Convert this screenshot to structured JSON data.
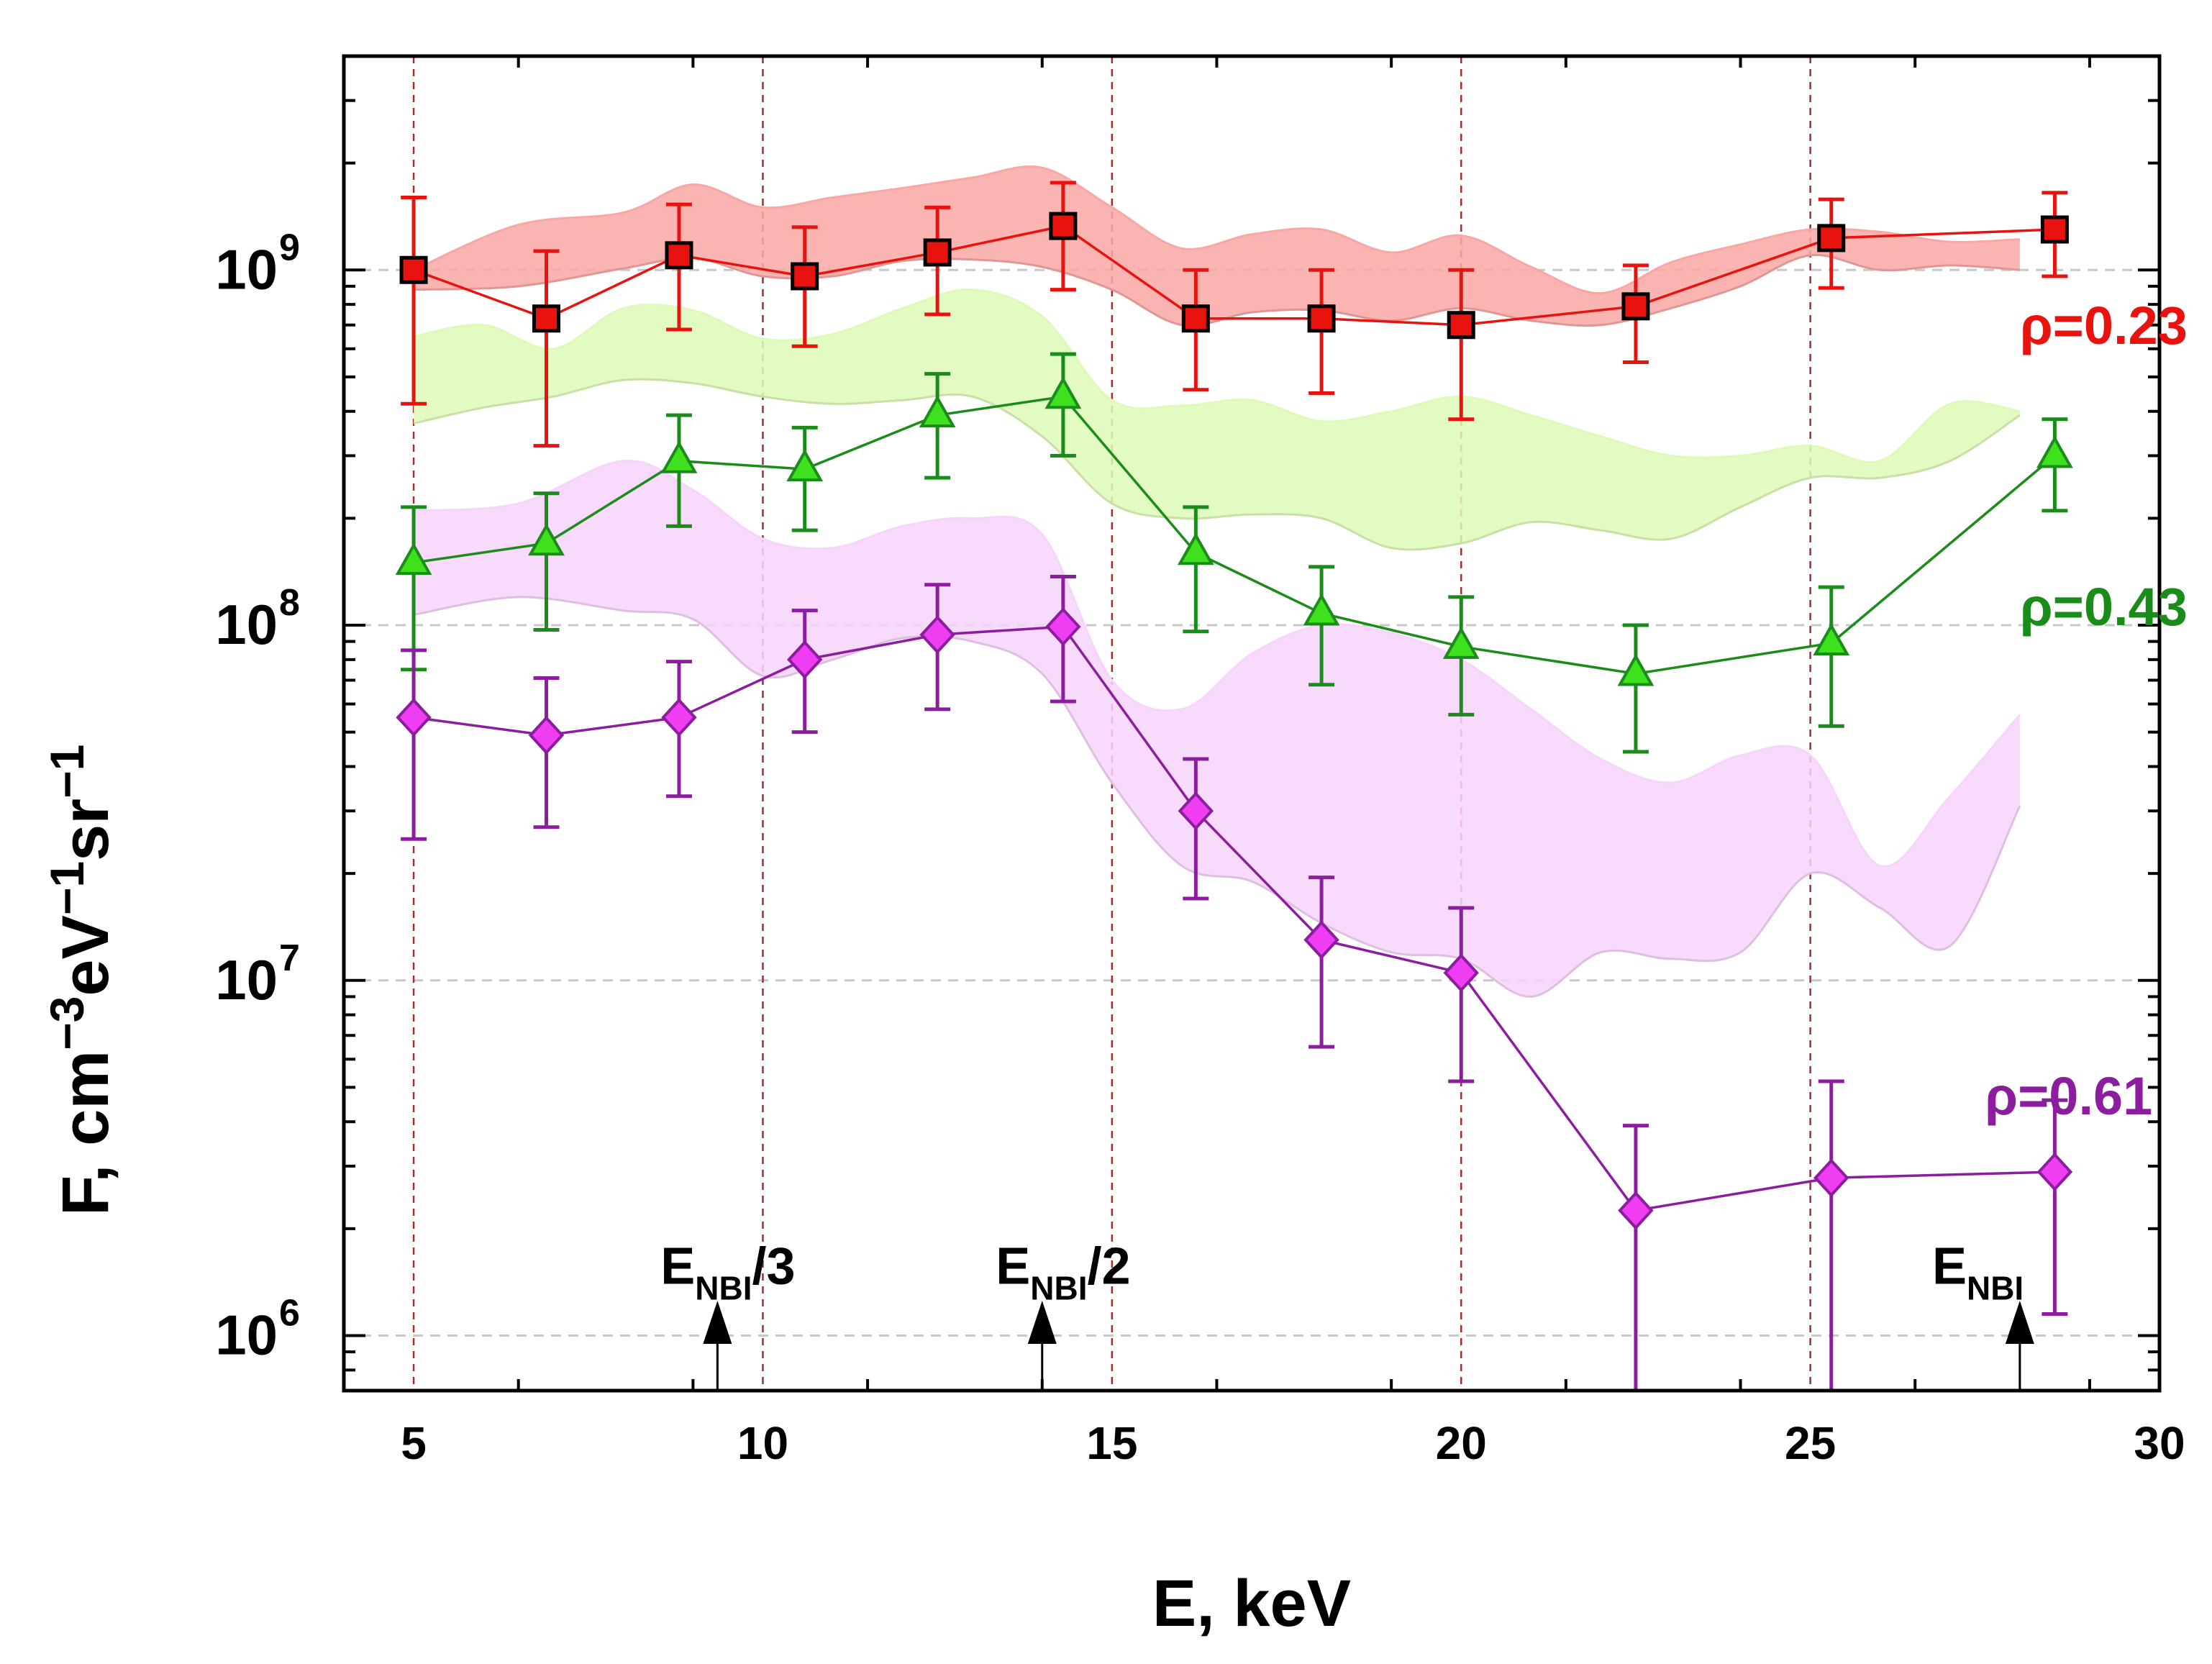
{
  "chart_data": {
    "type": "scatter",
    "title": "",
    "xlabel": "E, keV",
    "ylabel_parts": {
      "base": "F, cm",
      "sup1": "−3",
      "mid1": "eV",
      "sup2": "−1",
      "mid2": "sr",
      "sup3": "−1"
    },
    "xlim": [
      4,
      30
    ],
    "ylim": [
      700000,
      4000000000
    ],
    "yscale": "log",
    "x_ticks": [
      5,
      10,
      15,
      20,
      25,
      30
    ],
    "x_tick_labels": [
      "5",
      "10",
      "15",
      "20",
      "25",
      "30"
    ],
    "y_ticks": [
      1000000,
      10000000,
      100000000,
      1000000000
    ],
    "y_tick_labels": [
      {
        "base": "10",
        "exp": "6"
      },
      {
        "base": "10",
        "exp": "7"
      },
      {
        "base": "10",
        "exp": "8"
      },
      {
        "base": "10",
        "exp": "9"
      }
    ],
    "vertical_guides": [
      5,
      10,
      15,
      20,
      25
    ],
    "series": [
      {
        "name": "ρ=0.23",
        "color": "#e8130f",
        "marker_fill": "#e8130f",
        "marker": "square",
        "x": [
          5.0,
          6.9,
          8.8,
          10.6,
          12.5,
          14.3,
          16.2,
          18.0,
          20.0,
          22.5,
          25.3,
          28.5
        ],
        "y": [
          1000000000,
          730000000,
          1100000000,
          960000000,
          1120000000,
          1330000000,
          730000000,
          730000000,
          700000000,
          790000000,
          1230000000,
          1300000000
        ],
        "err_low": [
          420000000,
          320000000,
          680000000,
          610000000,
          750000000,
          880000000,
          460000000,
          450000000,
          380000000,
          550000000,
          890000000,
          960000000
        ],
        "err_high": [
          1600000000,
          1130000000,
          1530000000,
          1320000000,
          1500000000,
          1760000000,
          1000000000,
          1000000000,
          1000000000,
          1030000000,
          1580000000,
          1650000000
        ],
        "band_color": "#f9a7a4",
        "band_x": [
          5,
          6.5,
          8,
          9,
          10,
          11,
          12,
          13,
          14,
          15,
          16,
          17,
          18,
          19,
          20,
          21,
          22,
          23,
          24,
          25,
          26,
          27,
          28
        ],
        "band_low": [
          880000000,
          900000000,
          1010000000,
          1080000000,
          960000000,
          960000000,
          1060000000,
          1070000000,
          1020000000,
          880000000,
          700000000,
          760000000,
          770000000,
          720000000,
          780000000,
          720000000,
          700000000,
          780000000,
          900000000,
          1100000000,
          1000000000,
          1030000000,
          1000000000
        ],
        "band_high": [
          1000000000,
          1340000000,
          1450000000,
          1740000000,
          1500000000,
          1600000000,
          1700000000,
          1820000000,
          1940000000,
          1500000000,
          1150000000,
          1260000000,
          1300000000,
          1120000000,
          1250000000,
          1020000000,
          860000000,
          1050000000,
          1180000000,
          1300000000,
          1280000000,
          1200000000,
          1220000000
        ],
        "label_text": "ρ=0.23",
        "label_at": [
          28.0,
          620000000
        ]
      },
      {
        "name": "ρ=0.43",
        "color": "#1a8c19",
        "marker_fill": "#3fe01d",
        "marker": "triangle",
        "x": [
          5.0,
          6.9,
          8.8,
          10.6,
          12.5,
          14.3,
          16.2,
          18.0,
          20.0,
          22.5,
          25.3,
          28.5
        ],
        "y": [
          150000000,
          170000000,
          290000000,
          275000000,
          390000000,
          440000000,
          160000000,
          108000000,
          87000000,
          73000000,
          89000000,
          300000000
        ],
        "err_low": [
          75000000,
          97000000,
          190000000,
          185000000,
          260000000,
          300000000,
          96000000,
          68000000,
          56000000,
          44000000,
          52000000,
          210000000
        ],
        "err_high": [
          215000000,
          235000000,
          390000000,
          360000000,
          510000000,
          580000000,
          215000000,
          146000000,
          120000000,
          100000000,
          128000000,
          380000000
        ],
        "band_color": "#ddfab7",
        "band_x": [
          5,
          6,
          7,
          8,
          9,
          10,
          11,
          12,
          13,
          14,
          15,
          16,
          17,
          18,
          19,
          20,
          21,
          22,
          23,
          24,
          25,
          26,
          27,
          28
        ],
        "band_low": [
          370000000,
          410000000,
          440000000,
          490000000,
          480000000,
          440000000,
          420000000,
          430000000,
          440000000,
          340000000,
          220000000,
          200000000,
          205000000,
          200000000,
          165000000,
          170000000,
          195000000,
          185000000,
          175000000,
          215000000,
          260000000,
          260000000,
          290000000,
          390000000
        ],
        "band_high": [
          650000000,
          700000000,
          600000000,
          780000000,
          770000000,
          640000000,
          660000000,
          780000000,
          880000000,
          740000000,
          430000000,
          415000000,
          430000000,
          375000000,
          400000000,
          440000000,
          390000000,
          340000000,
          300000000,
          300000000,
          320000000,
          290000000,
          420000000,
          400000000
        ],
        "label_text": "ρ=0.43",
        "label_at": [
          28.0,
          100000000
        ]
      },
      {
        "name": "ρ=0.61",
        "color": "#8c1d9e",
        "marker_fill": "#ef3df2",
        "marker": "diamond",
        "x": [
          5.0,
          6.9,
          8.8,
          10.6,
          12.5,
          14.3,
          16.2,
          18.0,
          20.0,
          22.5,
          25.3,
          28.5
        ],
        "y": [
          55000000,
          49000000,
          55000000,
          80000000,
          94000000,
          99000000,
          30000000,
          13000000,
          10500000,
          2250000,
          2780000,
          2890000
        ],
        "err_low": [
          25000000,
          27000000,
          33000000,
          50000000,
          58000000,
          61000000,
          17000000,
          6500000,
          5200000,
          700000,
          700000,
          1150000
        ],
        "err_high": [
          85000000,
          71000000,
          79000000,
          110000000,
          130000000,
          137000000,
          42000000,
          19500000,
          16000000,
          3900000,
          5200000,
          4600000
        ],
        "band_color": "#f7d4fb",
        "band_x": [
          5,
          6.5,
          8,
          9,
          10,
          11,
          12,
          13,
          14,
          15,
          16,
          17,
          18,
          19,
          20,
          21,
          22,
          23,
          24,
          25,
          26,
          27,
          28
        ],
        "band_low": [
          107000000,
          120000000,
          110000000,
          104000000,
          72000000,
          80000000,
          92000000,
          90000000,
          73000000,
          36000000,
          21000000,
          19000000,
          14500000,
          12000000,
          11500000,
          9000000,
          12000000,
          11500000,
          12000000,
          20000000,
          16000000,
          12500000,
          31000000
        ],
        "band_high": [
          210000000,
          220000000,
          290000000,
          240000000,
          175000000,
          165000000,
          190000000,
          200000000,
          180000000,
          70000000,
          58000000,
          83000000,
          100000000,
          95000000,
          80000000,
          58000000,
          42000000,
          36000000,
          43000000,
          43000000,
          21000000,
          33000000,
          56000000
        ],
        "label_text": "ρ=0.61",
        "label_at": [
          27.5,
          4200000
        ]
      }
    ],
    "annotations": [
      {
        "base": "E",
        "sub": "NBI",
        "tail": "/3",
        "x": 9.35,
        "text_x": 9.5,
        "text_y": 1400000
      },
      {
        "base": "E",
        "sub": "NBI",
        "tail": "/2",
        "x": 14.0,
        "text_x": 14.3,
        "text_y": 1400000
      },
      {
        "base": "E",
        "sub": "NBI",
        "tail": "",
        "x": 28.0,
        "text_x": 27.4,
        "text_y": 1400000
      }
    ]
  }
}
